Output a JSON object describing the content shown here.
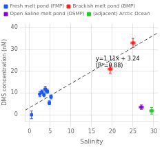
{
  "chart_data": {
    "type": "scatter",
    "xlabel": "Salinity",
    "ylabel": "DMS concentration (nM)",
    "xlim": [
      -1,
      31
    ],
    "ylim": [
      -3,
      42
    ],
    "xticks": [
      0,
      5,
      10,
      15,
      20,
      25,
      30
    ],
    "yticks": [
      0,
      10,
      20,
      30,
      40
    ],
    "grid": true,
    "legend": "upper left",
    "series": [
      {
        "name": "Fresh melt pond (FMP)",
        "color": "#1a56ff",
        "marker": "square",
        "x": [
          0.5,
          2.5,
          3.0,
          3.5,
          3.8,
          4.3,
          4.8,
          5.2
        ],
        "y": [
          0.0,
          9.5,
          10.5,
          9.2,
          11.8,
          10.8,
          5.5,
          8.2
        ],
        "xerr": [
          0.15,
          0.3,
          0.3,
          0.3,
          0.3,
          0.3,
          0.3,
          0.3
        ],
        "yerr": [
          1.8,
          1.2,
          0.9,
          0.9,
          1.3,
          1.0,
          0.9,
          0.9
        ]
      },
      {
        "name": "Brackish melt pond (BMP)",
        "color": "#ff2020",
        "marker": "square",
        "x": [
          19.5,
          25.0
        ],
        "y": [
          21.0,
          33.0
        ],
        "xerr": [
          0.5,
          0.5
        ],
        "yerr": [
          1.8,
          2.2
        ]
      },
      {
        "name": "Open Saline melt pond (OSMP)",
        "color": "#8800cc",
        "marker": "square",
        "x": [
          27.0
        ],
        "y": [
          3.5
        ],
        "xerr": [
          0.5
        ],
        "yerr": [
          1.0
        ]
      },
      {
        "name": "(adjacent) Arctic Ocean",
        "color": "#22cc22",
        "marker": "square",
        "x": [
          29.5
        ],
        "y": [
          1.8
        ],
        "xerr": [
          0.5
        ],
        "yerr": [
          1.5
        ]
      },
      {
        "type": "line",
        "color": "#444444",
        "line_style": "dashed",
        "x": [
          -1,
          31
        ],
        "y": [
          2.13,
          37.65
        ]
      }
    ],
    "annotations": [
      {
        "text": "y=1.11x + 3.24\n(R²=0.88)",
        "x": 16.0,
        "y": 27.0
      }
    ]
  }
}
